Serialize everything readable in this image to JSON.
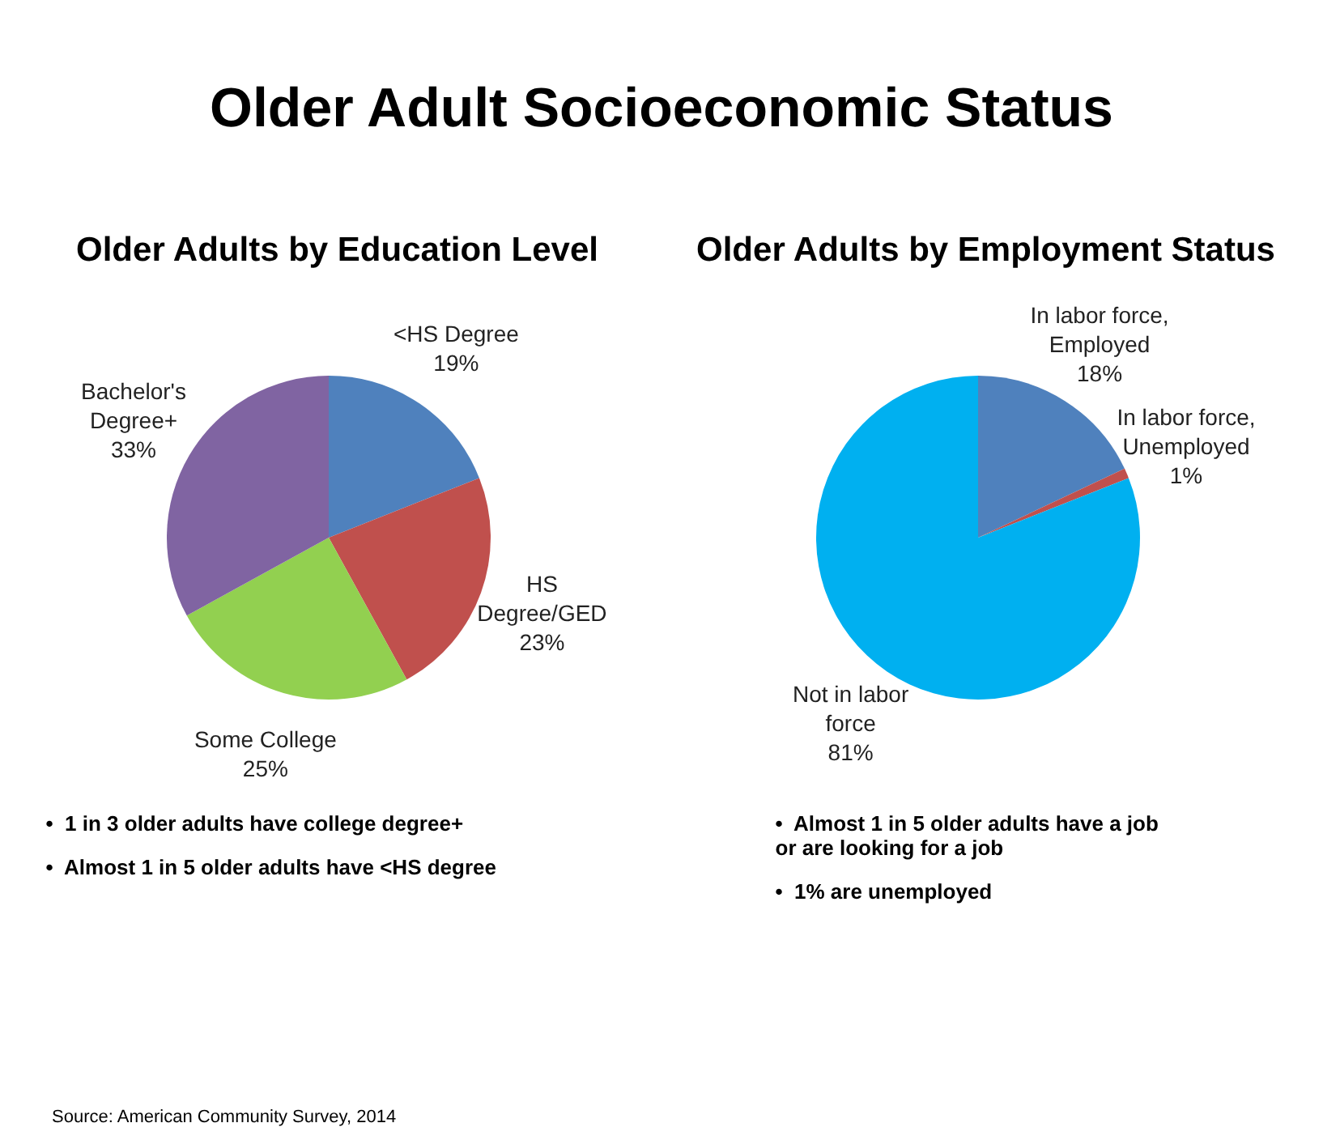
{
  "chart_data": [
    {
      "type": "other",
      "title": "Older Adult Socioeconomic Status",
      "annotations": [
        "Source:  American Community Survey, 2014"
      ]
    },
    {
      "type": "pie",
      "title": "Older Adults by Education Level",
      "categories": [
        "<HS Degree",
        "HS Degree/GED",
        "Some College",
        "Bachelor's Degree+"
      ],
      "values": [
        19,
        23,
        25,
        33
      ],
      "value_labels": [
        "19%",
        "23%",
        "25%",
        "33%"
      ],
      "colors": [
        "#4f81bd",
        "#c0504d",
        "#92d050",
        "#8064a2"
      ],
      "legend": false,
      "annotations": [
        "•  1 in 3 older adults have college degree+",
        "•  Almost 1 in 5 older adults have <HS degree"
      ]
    },
    {
      "type": "pie",
      "title": "Older Adults by Employment Status",
      "categories": [
        "In labor force, Employed",
        "In labor force, Unemployed",
        "Not in labor force"
      ],
      "values": [
        18,
        1,
        81
      ],
      "value_labels": [
        "18%",
        "1%",
        "81%"
      ],
      "colors": [
        "#4f81bd",
        "#c0504d",
        "#00b0f0"
      ],
      "legend": false,
      "annotations": [
        "•  Almost 1 in 5 older adults have a job or are looking for a job",
        "•  1% are unemployed"
      ]
    }
  ]
}
